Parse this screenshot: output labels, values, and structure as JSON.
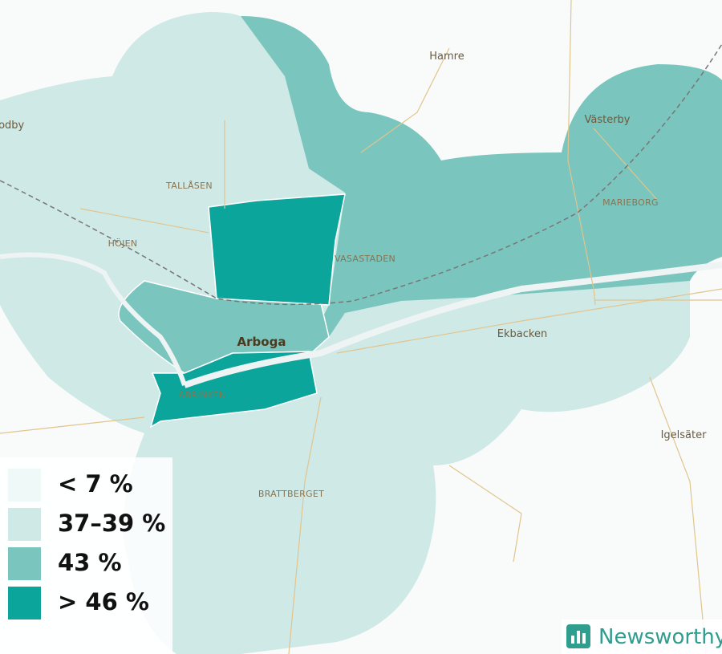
{
  "places": [
    {
      "label": "Hamre"
    },
    {
      "label": "Godby"
    },
    {
      "label": "Västerby"
    },
    {
      "label": "MARIEBORG"
    },
    {
      "label": "TALLÅSEN"
    },
    {
      "label": "HÖJEN"
    },
    {
      "label": "VASASTADEN"
    },
    {
      "label": "Arboga"
    },
    {
      "label": "Ekbacken"
    },
    {
      "label": "ÄBRINKEN"
    },
    {
      "label": "BRATTBERGET"
    },
    {
      "label": "Igelsäter"
    }
  ],
  "legend": {
    "items": [
      {
        "label": "< 7 %",
        "color": "#effaf8"
      },
      {
        "label": "37–39 %",
        "color": "#cfe9e6"
      },
      {
        "label": "43 %",
        "color": "#7ac5bd"
      },
      {
        "label": "> 46 %",
        "color": "#0ba59b"
      }
    ]
  },
  "brand": {
    "name": "Newsworthy"
  }
}
